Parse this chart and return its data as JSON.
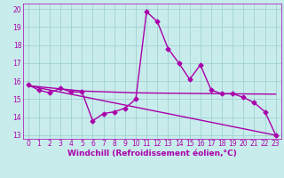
{
  "xlabel": "Windchill (Refroidissement éolien,°C)",
  "background_color": "#c8ecec",
  "line_color": "#aa00aa",
  "grid_color": "#99cccc",
  "xlim": [
    -0.5,
    23.5
  ],
  "ylim": [
    12.8,
    20.3
  ],
  "yticks": [
    13,
    14,
    15,
    16,
    17,
    18,
    19,
    20
  ],
  "xticks": [
    0,
    1,
    2,
    3,
    4,
    5,
    6,
    7,
    8,
    9,
    10,
    11,
    12,
    13,
    14,
    15,
    16,
    17,
    18,
    19,
    20,
    21,
    22,
    23
  ],
  "main_x": [
    0,
    1,
    2,
    3,
    4,
    5,
    6,
    7,
    8,
    9,
    10,
    11,
    12,
    13,
    14,
    15,
    16,
    17,
    18,
    19,
    20,
    21,
    22,
    23
  ],
  "main_y": [
    15.8,
    15.5,
    15.35,
    15.6,
    15.4,
    15.4,
    13.8,
    14.2,
    14.3,
    14.5,
    15.0,
    19.85,
    19.3,
    17.8,
    17.0,
    16.1,
    16.9,
    15.5,
    15.3,
    15.3,
    15.1,
    14.8,
    14.3,
    13.0
  ],
  "trend1_x": [
    0,
    5,
    10,
    18,
    23
  ],
  "trend1_y": [
    15.75,
    15.45,
    15.35,
    15.3,
    15.28
  ],
  "trend2_x": [
    0,
    23
  ],
  "trend2_y": [
    15.75,
    13.0
  ],
  "marker": "D",
  "marker_size": 2.5,
  "line_width": 1.0,
  "xlabel_fontsize": 6.5,
  "tick_fontsize": 5.5
}
